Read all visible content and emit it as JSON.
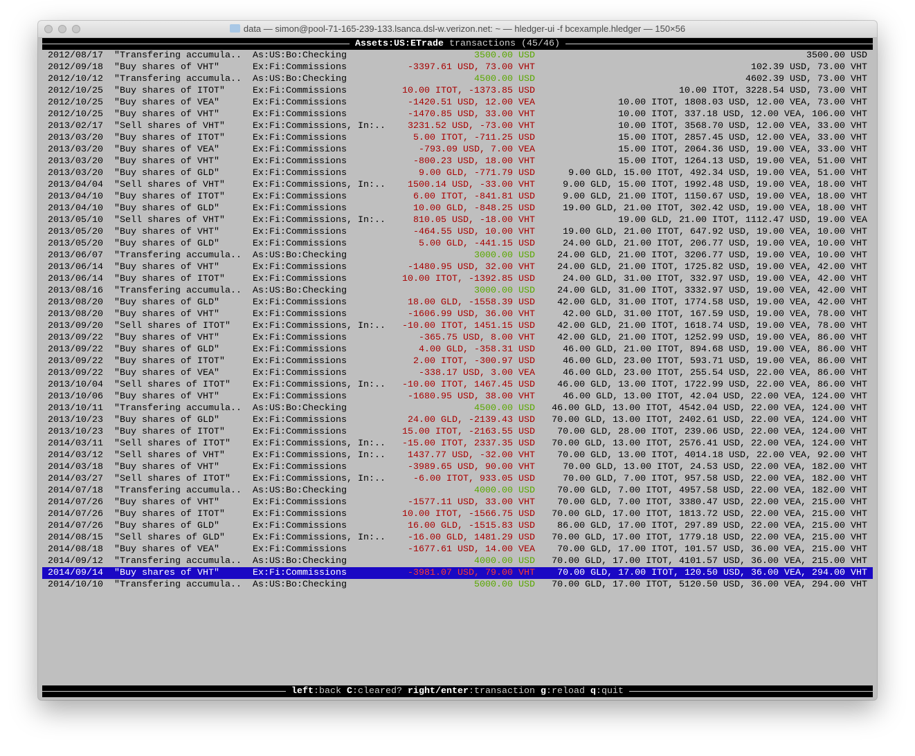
{
  "window": {
    "title": "data — simon@pool-71-165-239-133.lsanca.dsl-w.verizon.net: ~ — hledger-ui -f bcexample.hledger — 150×56"
  },
  "header": {
    "account": "Assets:US:ETrade",
    "label": " transactions (45/46)"
  },
  "footer": {
    "keys": [
      {
        "key": "left",
        "action": ":back"
      },
      {
        "key": "C",
        "action": ":cleared?"
      },
      {
        "key": "right/enter",
        "action": ":transaction"
      },
      {
        "key": "g",
        "action": ":reload"
      },
      {
        "key": "q",
        "action": ":quit"
      }
    ]
  },
  "colors": {
    "background": "#bfbfbf",
    "negative": "#a80000",
    "positive": "#5aa800",
    "selection": "#1a08c4"
  },
  "selected_index": 44,
  "rows": [
    [
      "2012/08/17",
      "\"Transfering accumula..",
      "As:US:Bo:Checking",
      "3500.00 USD",
      "3500.00 USD"
    ],
    [
      "2012/09/18",
      "\"Buy shares of VHT\"",
      "Ex:Fi:Commissions",
      "-3397.61 USD, 73.00 VHT",
      "102.39 USD, 73.00 VHT"
    ],
    [
      "2012/10/12",
      "\"Transfering accumula..",
      "As:US:Bo:Checking",
      "4500.00 USD",
      "4602.39 USD, 73.00 VHT"
    ],
    [
      "2012/10/25",
      "\"Buy shares of ITOT\"",
      "Ex:Fi:Commissions",
      "10.00 ITOT, -1373.85 USD",
      "10.00 ITOT, 3228.54 USD, 73.00 VHT"
    ],
    [
      "2012/10/25",
      "\"Buy shares of VEA\"",
      "Ex:Fi:Commissions",
      "-1420.51 USD, 12.00 VEA",
      "10.00 ITOT, 1808.03 USD, 12.00 VEA, 73.00 VHT"
    ],
    [
      "2012/10/25",
      "\"Buy shares of VHT\"",
      "Ex:Fi:Commissions",
      "-1470.85 USD, 33.00 VHT",
      "10.00 ITOT, 337.18 USD, 12.00 VEA, 106.00 VHT"
    ],
    [
      "2013/02/17",
      "\"Sell shares of VHT\"",
      "Ex:Fi:Commissions, In:..",
      "3231.52 USD, -73.00 VHT",
      "10.00 ITOT, 3568.70 USD, 12.00 VEA, 33.00 VHT"
    ],
    [
      "2013/03/20",
      "\"Buy shares of ITOT\"",
      "Ex:Fi:Commissions",
      "5.00 ITOT, -711.25 USD",
      "15.00 ITOT, 2857.45 USD, 12.00 VEA, 33.00 VHT"
    ],
    [
      "2013/03/20",
      "\"Buy shares of VEA\"",
      "Ex:Fi:Commissions",
      "-793.09 USD, 7.00 VEA",
      "15.00 ITOT, 2064.36 USD, 19.00 VEA, 33.00 VHT"
    ],
    [
      "2013/03/20",
      "\"Buy shares of VHT\"",
      "Ex:Fi:Commissions",
      "-800.23 USD, 18.00 VHT",
      "15.00 ITOT, 1264.13 USD, 19.00 VEA, 51.00 VHT"
    ],
    [
      "2013/03/20",
      "\"Buy shares of GLD\"",
      "Ex:Fi:Commissions",
      "9.00 GLD, -771.79 USD",
      "9.00 GLD, 15.00 ITOT, 492.34 USD, 19.00 VEA, 51.00 VHT"
    ],
    [
      "2013/04/04",
      "\"Sell shares of VHT\"",
      "Ex:Fi:Commissions, In:..",
      "1500.14 USD, -33.00 VHT",
      "9.00 GLD, 15.00 ITOT, 1992.48 USD, 19.00 VEA, 18.00 VHT"
    ],
    [
      "2013/04/10",
      "\"Buy shares of ITOT\"",
      "Ex:Fi:Commissions",
      "6.00 ITOT, -841.81 USD",
      "9.00 GLD, 21.00 ITOT, 1150.67 USD, 19.00 VEA, 18.00 VHT"
    ],
    [
      "2013/04/10",
      "\"Buy shares of GLD\"",
      "Ex:Fi:Commissions",
      "10.00 GLD, -848.25 USD",
      "19.00 GLD, 21.00 ITOT, 302.42 USD, 19.00 VEA, 18.00 VHT"
    ],
    [
      "2013/05/10",
      "\"Sell shares of VHT\"",
      "Ex:Fi:Commissions, In:..",
      "810.05 USD, -18.00 VHT",
      "19.00 GLD, 21.00 ITOT, 1112.47 USD, 19.00 VEA"
    ],
    [
      "2013/05/20",
      "\"Buy shares of VHT\"",
      "Ex:Fi:Commissions",
      "-464.55 USD, 10.00 VHT",
      "19.00 GLD, 21.00 ITOT, 647.92 USD, 19.00 VEA, 10.00 VHT"
    ],
    [
      "2013/05/20",
      "\"Buy shares of GLD\"",
      "Ex:Fi:Commissions",
      "5.00 GLD, -441.15 USD",
      "24.00 GLD, 21.00 ITOT, 206.77 USD, 19.00 VEA, 10.00 VHT"
    ],
    [
      "2013/06/07",
      "\"Transfering accumula..",
      "As:US:Bo:Checking",
      "3000.00 USD",
      "24.00 GLD, 21.00 ITOT, 3206.77 USD, 19.00 VEA, 10.00 VHT"
    ],
    [
      "2013/06/14",
      "\"Buy shares of VHT\"",
      "Ex:Fi:Commissions",
      "-1480.95 USD, 32.00 VHT",
      "24.00 GLD, 21.00 ITOT, 1725.82 USD, 19.00 VEA, 42.00 VHT"
    ],
    [
      "2013/06/14",
      "\"Buy shares of ITOT\"",
      "Ex:Fi:Commissions",
      "10.00 ITOT, -1392.85 USD",
      "24.00 GLD, 31.00 ITOT, 332.97 USD, 19.00 VEA, 42.00 VHT"
    ],
    [
      "2013/08/16",
      "\"Transfering accumula..",
      "As:US:Bo:Checking",
      "3000.00 USD",
      "24.00 GLD, 31.00 ITOT, 3332.97 USD, 19.00 VEA, 42.00 VHT"
    ],
    [
      "2013/08/20",
      "\"Buy shares of GLD\"",
      "Ex:Fi:Commissions",
      "18.00 GLD, -1558.39 USD",
      "42.00 GLD, 31.00 ITOT, 1774.58 USD, 19.00 VEA, 42.00 VHT"
    ],
    [
      "2013/08/20",
      "\"Buy shares of VHT\"",
      "Ex:Fi:Commissions",
      "-1606.99 USD, 36.00 VHT",
      "42.00 GLD, 31.00 ITOT, 167.59 USD, 19.00 VEA, 78.00 VHT"
    ],
    [
      "2013/09/20",
      "\"Sell shares of ITOT\"",
      "Ex:Fi:Commissions, In:..",
      "-10.00 ITOT, 1451.15 USD",
      "42.00 GLD, 21.00 ITOT, 1618.74 USD, 19.00 VEA, 78.00 VHT"
    ],
    [
      "2013/09/22",
      "\"Buy shares of VHT\"",
      "Ex:Fi:Commissions",
      "-365.75 USD, 8.00 VHT",
      "42.00 GLD, 21.00 ITOT, 1252.99 USD, 19.00 VEA, 86.00 VHT"
    ],
    [
      "2013/09/22",
      "\"Buy shares of GLD\"",
      "Ex:Fi:Commissions",
      "4.00 GLD, -358.31 USD",
      "46.00 GLD, 21.00 ITOT, 894.68 USD, 19.00 VEA, 86.00 VHT"
    ],
    [
      "2013/09/22",
      "\"Buy shares of ITOT\"",
      "Ex:Fi:Commissions",
      "2.00 ITOT, -300.97 USD",
      "46.00 GLD, 23.00 ITOT, 593.71 USD, 19.00 VEA, 86.00 VHT"
    ],
    [
      "2013/09/22",
      "\"Buy shares of VEA\"",
      "Ex:Fi:Commissions",
      "-338.17 USD, 3.00 VEA",
      "46.00 GLD, 23.00 ITOT, 255.54 USD, 22.00 VEA, 86.00 VHT"
    ],
    [
      "2013/10/04",
      "\"Sell shares of ITOT\"",
      "Ex:Fi:Commissions, In:..",
      "-10.00 ITOT, 1467.45 USD",
      "46.00 GLD, 13.00 ITOT, 1722.99 USD, 22.00 VEA, 86.00 VHT"
    ],
    [
      "2013/10/06",
      "\"Buy shares of VHT\"",
      "Ex:Fi:Commissions",
      "-1680.95 USD, 38.00 VHT",
      "46.00 GLD, 13.00 ITOT, 42.04 USD, 22.00 VEA, 124.00 VHT"
    ],
    [
      "2013/10/11",
      "\"Transfering accumula..",
      "As:US:Bo:Checking",
      "4500.00 USD",
      "46.00 GLD, 13.00 ITOT, 4542.04 USD, 22.00 VEA, 124.00 VHT"
    ],
    [
      "2013/10/23",
      "\"Buy shares of GLD\"",
      "Ex:Fi:Commissions",
      "24.00 GLD, -2139.43 USD",
      "70.00 GLD, 13.00 ITOT, 2402.61 USD, 22.00 VEA, 124.00 VHT"
    ],
    [
      "2013/10/23",
      "\"Buy shares of ITOT\"",
      "Ex:Fi:Commissions",
      "15.00 ITOT, -2163.55 USD",
      "70.00 GLD, 28.00 ITOT, 239.06 USD, 22.00 VEA, 124.00 VHT"
    ],
    [
      "2014/03/11",
      "\"Sell shares of ITOT\"",
      "Ex:Fi:Commissions, In:..",
      "-15.00 ITOT, 2337.35 USD",
      "70.00 GLD, 13.00 ITOT, 2576.41 USD, 22.00 VEA, 124.00 VHT"
    ],
    [
      "2014/03/12",
      "\"Sell shares of VHT\"",
      "Ex:Fi:Commissions, In:..",
      "1437.77 USD, -32.00 VHT",
      "70.00 GLD, 13.00 ITOT, 4014.18 USD, 22.00 VEA, 92.00 VHT"
    ],
    [
      "2014/03/18",
      "\"Buy shares of VHT\"",
      "Ex:Fi:Commissions",
      "-3989.65 USD, 90.00 VHT",
      "70.00 GLD, 13.00 ITOT, 24.53 USD, 22.00 VEA, 182.00 VHT"
    ],
    [
      "2014/03/27",
      "\"Sell shares of ITOT\"",
      "Ex:Fi:Commissions, In:..",
      "-6.00 ITOT, 933.05 USD",
      "70.00 GLD, 7.00 ITOT, 957.58 USD, 22.00 VEA, 182.00 VHT"
    ],
    [
      "2014/07/18",
      "\"Transfering accumula..",
      "As:US:Bo:Checking",
      "4000.00 USD",
      "70.00 GLD, 7.00 ITOT, 4957.58 USD, 22.00 VEA, 182.00 VHT"
    ],
    [
      "2014/07/26",
      "\"Buy shares of VHT\"",
      "Ex:Fi:Commissions",
      "-1577.11 USD, 33.00 VHT",
      "70.00 GLD, 7.00 ITOT, 3380.47 USD, 22.00 VEA, 215.00 VHT"
    ],
    [
      "2014/07/26",
      "\"Buy shares of ITOT\"",
      "Ex:Fi:Commissions",
      "10.00 ITOT, -1566.75 USD",
      "70.00 GLD, 17.00 ITOT, 1813.72 USD, 22.00 VEA, 215.00 VHT"
    ],
    [
      "2014/07/26",
      "\"Buy shares of GLD\"",
      "Ex:Fi:Commissions",
      "16.00 GLD, -1515.83 USD",
      "86.00 GLD, 17.00 ITOT, 297.89 USD, 22.00 VEA, 215.00 VHT"
    ],
    [
      "2014/08/15",
      "\"Sell shares of GLD\"",
      "Ex:Fi:Commissions, In:..",
      "-16.00 GLD, 1481.29 USD",
      "70.00 GLD, 17.00 ITOT, 1779.18 USD, 22.00 VEA, 215.00 VHT"
    ],
    [
      "2014/08/18",
      "\"Buy shares of VEA\"",
      "Ex:Fi:Commissions",
      "-1677.61 USD, 14.00 VEA",
      "70.00 GLD, 17.00 ITOT, 101.57 USD, 36.00 VEA, 215.00 VHT"
    ],
    [
      "2014/09/12",
      "\"Transfering accumula..",
      "As:US:Bo:Checking",
      "4000.00 USD",
      "70.00 GLD, 17.00 ITOT, 4101.57 USD, 36.00 VEA, 215.00 VHT"
    ],
    [
      "2014/09/14",
      "\"Buy shares of VHT\"",
      "Ex:Fi:Commissions",
      "-3981.07 USD, 79.00 VHT",
      "70.00 GLD, 17.00 ITOT, 120.50 USD, 36.00 VEA, 294.00 VHT"
    ],
    [
      "2014/10/10",
      "\"Transfering accumula..",
      "As:US:Bo:Checking",
      "5000.00 USD",
      "70.00 GLD, 17.00 ITOT, 5120.50 USD, 36.00 VEA, 294.00 VHT"
    ]
  ]
}
